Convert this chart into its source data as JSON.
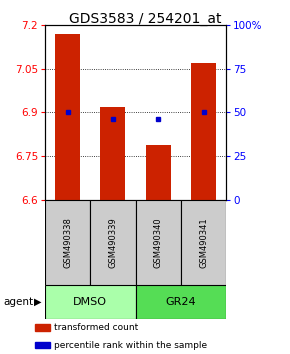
{
  "title": "GDS3583 / 254201_at",
  "categories": [
    "GSM490338",
    "GSM490339",
    "GSM490340",
    "GSM490341"
  ],
  "bar_values": [
    7.17,
    6.92,
    6.79,
    7.07
  ],
  "bar_baseline": 6.6,
  "percentile_values": [
    6.9,
    6.878,
    6.878,
    6.9
  ],
  "ylim": [
    6.6,
    7.2
  ],
  "yticks_left": [
    6.6,
    6.75,
    6.9,
    7.05,
    7.2
  ],
  "yticks_right": [
    0,
    25,
    50,
    75,
    100
  ],
  "bar_color": "#cc2200",
  "percentile_color": "#0000cc",
  "groups": [
    {
      "label": "DMSO",
      "indices": [
        0,
        1
      ],
      "color": "#aaffaa"
    },
    {
      "label": "GR24",
      "indices": [
        2,
        3
      ],
      "color": "#55dd55"
    }
  ],
  "agent_label": "agent",
  "legend_items": [
    {
      "label": "transformed count",
      "color": "#cc2200"
    },
    {
      "label": "percentile rank within the sample",
      "color": "#0000cc"
    }
  ],
  "bar_width": 0.55,
  "sample_box_color": "#cccccc",
  "title_fontsize": 10,
  "tick_fontsize": 7.5,
  "label_fontsize": 7.5
}
